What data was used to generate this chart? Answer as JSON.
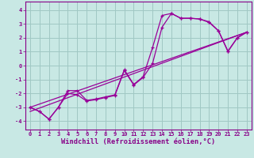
{
  "xlabel": "Windchill (Refroidissement éolien,°C)",
  "xlim": [
    -0.5,
    23.5
  ],
  "ylim": [
    -4.6,
    4.6
  ],
  "xtick_values": [
    0,
    1,
    2,
    3,
    4,
    5,
    6,
    7,
    8,
    9,
    10,
    11,
    12,
    13,
    14,
    15,
    16,
    17,
    18,
    19,
    20,
    21,
    22,
    23
  ],
  "xtick_labels": [
    "0",
    "1",
    "2",
    "3",
    "4",
    "5",
    "6",
    "7",
    "8",
    "9",
    "10",
    "11",
    "12",
    "13",
    "14",
    "15",
    "16",
    "17",
    "18",
    "19",
    "20",
    "21",
    "22",
    "23"
  ],
  "ytick_values": [
    -4,
    -3,
    -2,
    -1,
    0,
    1,
    2,
    3,
    4
  ],
  "ytick_labels": [
    "-4",
    "-3",
    "-2",
    "-1",
    "0",
    "1",
    "2",
    "3",
    "4"
  ],
  "background_color": "#c8e8e4",
  "grid_color": "#a0c8c4",
  "line_color": "#990099",
  "line1_x": [
    0,
    1,
    2,
    3,
    4,
    5,
    6,
    7,
    8,
    9,
    10,
    11,
    12,
    13,
    14,
    15,
    16,
    17,
    18,
    19,
    20,
    21,
    22,
    23
  ],
  "line1_y": [
    -3.0,
    -3.3,
    -3.85,
    -3.0,
    -1.8,
    -1.8,
    -2.5,
    -2.4,
    -2.25,
    -2.1,
    -0.3,
    -1.35,
    -0.8,
    1.3,
    3.6,
    3.75,
    3.4,
    3.4,
    3.35,
    3.1,
    2.5,
    1.0,
    2.0,
    2.4
  ],
  "line2_x": [
    0,
    1,
    2,
    3,
    4,
    5,
    6,
    7,
    8,
    9,
    10,
    11,
    12,
    13,
    14,
    15,
    16,
    17,
    18,
    19,
    20,
    21,
    22,
    23
  ],
  "line2_y": [
    -3.0,
    -3.3,
    -3.85,
    -3.0,
    -2.0,
    -2.1,
    -2.55,
    -2.45,
    -2.3,
    -2.15,
    -0.35,
    -1.4,
    -0.85,
    0.15,
    2.75,
    3.75,
    3.4,
    3.4,
    3.35,
    3.15,
    2.5,
    1.05,
    2.0,
    2.4
  ],
  "line3_x": [
    0,
    23
  ],
  "line3_y": [
    -3.0,
    2.4
  ],
  "line4_x": [
    0,
    23
  ],
  "line4_y": [
    -3.3,
    2.4
  ],
  "font_color": "#880088",
  "tick_fontsize": 5.0,
  "xlabel_fontsize": 6.2
}
